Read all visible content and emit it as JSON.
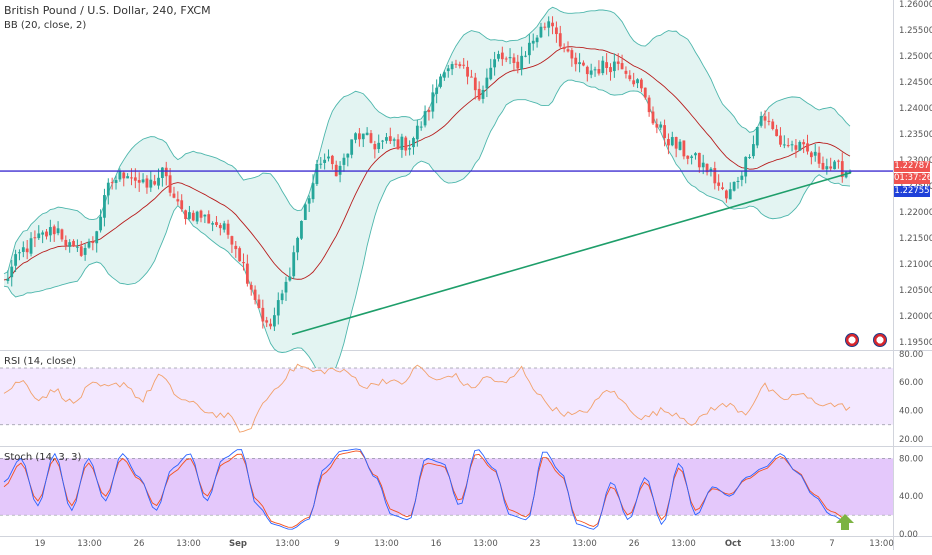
{
  "symbol_title": "British Pound / U.S. Dollar, 240, FXCM",
  "bb_label": "BB (20, close, 2)",
  "rsi_label": "RSI (14, close)",
  "stoch_label": "Stoch (14, 3, 3)",
  "price_tags": {
    "last": "1.22787",
    "countdown": "01:37:26",
    "other": "1.22755"
  },
  "colors": {
    "up": "#26a69a",
    "down": "#ef5350",
    "bb_fill": "#e3f4f2",
    "bb_band": "#4db6ac",
    "bb_basis": "#b71c1c",
    "hline": "#3f2fd1",
    "trendline": "#1e9e6a",
    "rsi_line": "#f2a16b",
    "rsi_fill": "#f3e8ff",
    "stoch_k": "#2962ff",
    "stoch_d": "#f4511e",
    "stoch_fill": "#e4c8fb",
    "arrow": "#7cb342"
  },
  "chart_data": [
    {
      "type": "candlestick",
      "title": "British Pound / U.S. Dollar, 240, FXCM",
      "indicator": "BB (20, close, 2)",
      "ylim": [
        1.1935,
        1.2608
      ],
      "y_ticks": [
        "1.26000",
        "1.25500",
        "1.25000",
        "1.24500",
        "1.24000",
        "1.23500",
        "1.23000",
        "1.22500",
        "1.22000",
        "1.21500",
        "1.21000",
        "1.20500",
        "1.20000",
        "1.19500"
      ],
      "x_ticks": [
        "19",
        "13:00",
        "26",
        "13:00",
        "Sep",
        "13:00",
        "9",
        "13:00",
        "16",
        "13:00",
        "23",
        "13:00",
        "26",
        "13:00",
        "Oct",
        "13:00",
        "7",
        "13:00"
      ],
      "horizontal_line": 1.2279,
      "trendline": {
        "from": [
          0,
          1.1965
        ],
        "to": [
          1,
          1.2276
        ]
      },
      "close_path": [
        1.2065,
        1.2125,
        1.215,
        1.217,
        1.212,
        1.214,
        1.2255,
        1.228,
        1.2245,
        1.2275,
        1.22,
        1.2195,
        1.218,
        1.215,
        1.206,
        1.197,
        1.206,
        1.22,
        1.2305,
        1.228,
        1.235,
        1.233,
        1.2335,
        1.233,
        1.239,
        1.2485,
        1.247,
        1.243,
        1.25,
        1.248,
        1.253,
        1.2575,
        1.2495,
        1.247,
        1.248,
        1.249,
        1.2445,
        1.2365,
        1.233,
        1.2305,
        1.228,
        1.2225,
        1.229,
        1.239,
        1.2335,
        1.2325,
        1.2305,
        1.2285,
        1.2279
      ]
    },
    {
      "type": "line",
      "title": "RSI (14, close)",
      "ylim": [
        15,
        82
      ],
      "y_ticks": [
        "80.00",
        "60.00",
        "40.00",
        "20.00"
      ],
      "band": [
        30,
        70
      ],
      "path": [
        52,
        62,
        48,
        55,
        44,
        58,
        56,
        60,
        46,
        66,
        50,
        44,
        38,
        36,
        22,
        45,
        60,
        72,
        67,
        69,
        66,
        56,
        62,
        58,
        72,
        60,
        66,
        55,
        64,
        58,
        70,
        50,
        40,
        36,
        42,
        56,
        44,
        34,
        40,
        38,
        30,
        42,
        44,
        38,
        58,
        47,
        52,
        46,
        44,
        42
      ]
    },
    {
      "type": "line",
      "title": "Stoch (14, 3, 3)",
      "ylim": [
        -2,
        92
      ],
      "y_ticks": [
        "80.00",
        "40.00",
        "0.00"
      ],
      "band": [
        20,
        80
      ],
      "k_path": [
        55,
        80,
        30,
        85,
        25,
        80,
        35,
        85,
        60,
        25,
        70,
        85,
        35,
        80,
        90,
        30,
        10,
        5,
        15,
        70,
        88,
        90,
        60,
        20,
        15,
        80,
        75,
        30,
        90,
        70,
        20,
        15,
        88,
        65,
        10,
        5,
        55,
        15,
        60,
        10,
        75,
        20,
        50,
        40,
        60,
        70,
        85,
        65,
        40,
        20,
        12
      ],
      "d_path": [
        50,
        75,
        35,
        80,
        30,
        75,
        40,
        80,
        58,
        30,
        65,
        80,
        40,
        75,
        85,
        35,
        12,
        7,
        17,
        65,
        85,
        88,
        62,
        25,
        18,
        75,
        72,
        35,
        85,
        68,
        25,
        18,
        82,
        62,
        14,
        8,
        50,
        20,
        55,
        15,
        70,
        25,
        48,
        42,
        58,
        68,
        82,
        66,
        42,
        24,
        15
      ]
    }
  ]
}
